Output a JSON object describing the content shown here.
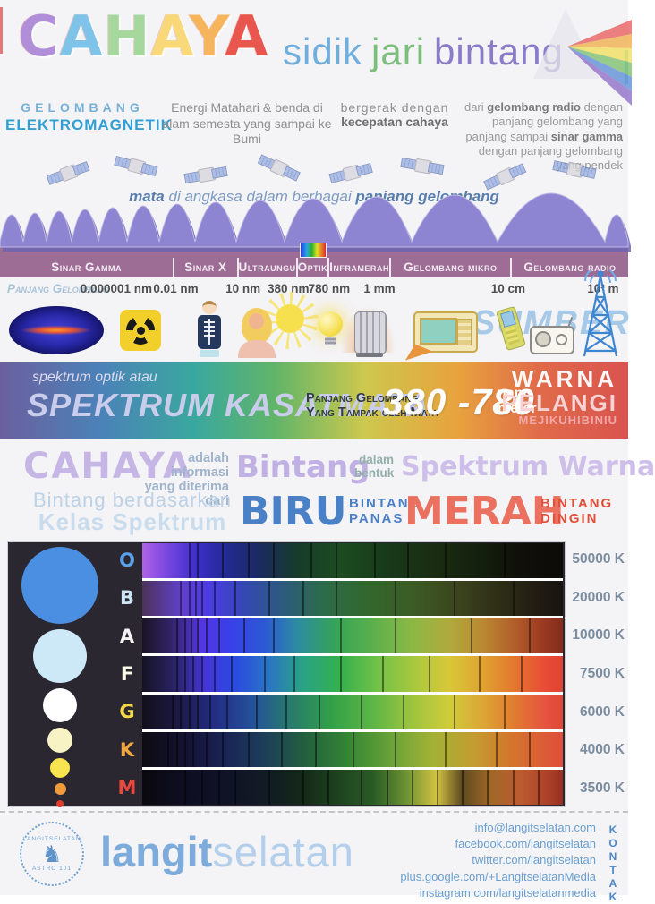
{
  "colors": {
    "background": "#f4f3f5",
    "accent_blue": "#2f9fd6",
    "band_bar": "#9d6d95",
    "wave_purple": "#8d85d1",
    "panel_dark": "#2a2730"
  },
  "header": {
    "title_letters": [
      {
        "char": "C",
        "color": "#b08fd8"
      },
      {
        "char": "A",
        "color": "#7fc4e8"
      },
      {
        "char": "H",
        "color": "#a6d89e"
      },
      {
        "char": "A",
        "color": "#f8d878"
      },
      {
        "char": "Y",
        "color": "#f6b45c"
      },
      {
        "char": "A",
        "color": "#e8564e"
      }
    ],
    "subtitle_words": [
      {
        "text": "sidik",
        "color": "#70aede"
      },
      {
        "text": "jari",
        "color": "#7cbe7c"
      },
      {
        "text": "bintang",
        "color": "#8a7cc8"
      }
    ]
  },
  "intro": {
    "gelombang": "GELOMBANG",
    "elektromagnetik": "ELEKTROMAGNETIK",
    "energi": "Energi Matahari & benda di alam semesta yang sampai ke Bumi",
    "bergerak_line1": "bergerak dengan",
    "bergerak_line2": "kecepatan cahaya",
    "dari_segments": [
      {
        "t": "dari "
      },
      {
        "t": "gelombang radio",
        "b": true
      },
      {
        "t": " dengan panjang gelombang yang panjang sampai "
      },
      {
        "t": "sinar gamma",
        "b": true
      },
      {
        "t": " dengan panjang gelombang yang pendek"
      }
    ]
  },
  "satellites": {
    "caption_segments": [
      {
        "t": "mata",
        "b": true
      },
      {
        "t": " di angkasa dalam berbagai "
      },
      {
        "t": "panjang gelombang",
        "b": true
      }
    ]
  },
  "em_bar": {
    "bands": [
      {
        "label": "Sinar Gamma",
        "width": 28.5
      },
      {
        "label": "Sinar X",
        "width": 10.4
      },
      {
        "label": "Ultraungu",
        "width": 8.1
      },
      {
        "label": "Optik",
        "width": 5.0,
        "rainbow": true
      },
      {
        "label": "Inframerah",
        "width": 9.3
      },
      {
        "label": "Gelombang mikro",
        "width": 19.7
      },
      {
        "label": "Gelombang radio",
        "width": 19.0
      }
    ],
    "wavelength_label": "Panjang Gelombang",
    "ticks": [
      {
        "label": "0.000001 nm",
        "pos": 18.5
      },
      {
        "label": "0.01 nm",
        "pos": 28.0
      },
      {
        "label": "10 nm",
        "pos": 38.7
      },
      {
        "label": "380 nm",
        "pos": 45.9
      },
      {
        "label": "780 nm",
        "pos": 52.4
      },
      {
        "label": "1 mm",
        "pos": 60.4
      },
      {
        "label": "10 cm",
        "pos": 80.9
      },
      {
        "label": "10³ m",
        "pos": 96.0
      }
    ],
    "sumber": "SUMBER",
    "source_icons": [
      "gamma-sky-map",
      "radioactive-symbol",
      "xray-skeleton-boy",
      "sunbathing-woman",
      "light-bulb",
      "radiator-heater",
      "microwave-oven",
      "mobile-phone",
      "radio-receiver",
      "radio-tower"
    ]
  },
  "banner": {
    "line1": "spektrum optik atau",
    "line2": "SPEKTRUM KASATMATA",
    "desc_line1": "Panjang Gelombang",
    "desc_line2": "Yang Tampak oleh Mata",
    "range": "380 -780",
    "unit_line1": "nano",
    "unit_line2": "meter",
    "warna": "WARNA",
    "pelangi": "PELANGI",
    "mejikuhibiniu": "MEJIKUHIBINIU"
  },
  "light": {
    "cahaya": "CAHAYA",
    "adalah_line1": "adalah informasi",
    "adalah_line2": "yang diterima dari",
    "bintang": "Bintang",
    "dalam_line1": "dalam",
    "dalam_line2": "bentuk",
    "spektrum_warna": "Spektrum Warna",
    "berdasarkan_line1": "Bintang berdasarkan",
    "berdasarkan_line2": "Kelas Spektrum",
    "biru": "BIRU",
    "panas_line1": "BINTANG",
    "panas_line2": "PANAS",
    "merah": "MERAH",
    "dingin_line1": "BINTANG",
    "dingin_line2": "DINGIN"
  },
  "chart_data": {
    "type": "heatmap",
    "title": "Kelas Spektrum Bintang",
    "classes": [
      "O",
      "B",
      "A",
      "F",
      "G",
      "K",
      "M"
    ],
    "temperatures_K": [
      50000,
      20000,
      10000,
      7500,
      6000,
      4000,
      3500
    ],
    "temperature_labels": [
      "50000 K",
      "20000 K",
      "10000 K",
      "7500 K",
      "6000 K",
      "4000 K",
      "3500 K"
    ],
    "em_bands": [
      "Sinar Gamma",
      "Sinar X",
      "Ultraungu",
      "Optik",
      "Inframerah",
      "Gelombang mikro",
      "Gelombang radio"
    ],
    "em_boundaries": [
      "0.000001 nm",
      "0.01 nm",
      "10 nm",
      "380 nm",
      "780 nm",
      "1 mm",
      "10 cm",
      "10³ m"
    ],
    "visible_range_nm": [
      380,
      780
    ],
    "legend_position": "right",
    "grid": false
  },
  "spectral_rows": [
    {
      "letter_color": "#5aa0ea",
      "circle": {
        "color": "#4a8fe2",
        "size": 86
      },
      "gradient": "linear-gradient(90deg,#b062e8 0%,#7846e0 6%,#3c2ec8 13%,#222a92 20%,#1b2a5e 28%,#173c2a 37%,#1c4c20 47%,#183a1a 58%,#1a2c12 70%,#14200e 80%,#100f0a 90%,#0c0b08 100%)",
      "lines": [
        11,
        13,
        19,
        25,
        31,
        40,
        46,
        55,
        63,
        72,
        86
      ]
    },
    {
      "letter_color": "#cfe6f6",
      "circle": {
        "color": "#cde9f7",
        "size": 60
      },
      "gradient": "linear-gradient(90deg,#4c3358 0%,#6040c8 9%,#4c3ce4 16%,#3648b4 24%,#2c5a80 33%,#2c6c4a 43%,#32682e 53%,#3c5c26 64%,#3c441e 75%,#2c2c16 86%,#201a12 95%,#181410 100%)",
      "lines": [
        9,
        11,
        12.5,
        14,
        17,
        22,
        30,
        38,
        46,
        60,
        74,
        88
      ]
    },
    {
      "letter_color": "#f4f4f4",
      "circle": {
        "color": "#ffffff",
        "size": 38
      },
      "gradient": "linear-gradient(90deg,#1a1424 0%,#32246a 7%,#5436e0 14%,#3840e8 21%,#2c58d4 29%,#2c8ca0 37%,#36a456 46%,#5cb04c 55%,#8cb845 64%,#b0aa3c 73%,#ba8832 81%,#b05c2a 89%,#9c3a22 95%,#842c1c 100%)",
      "lines": [
        8,
        10,
        11.5,
        13,
        15,
        18,
        24,
        31,
        47,
        60,
        78,
        92
      ]
    },
    {
      "letter_color": "#fcf9e6",
      "circle": {
        "color": "#f8f3c4",
        "size": 28
      },
      "gradient": "linear-gradient(90deg,#161222 0%,#2a2468 8%,#4636d8 15%,#2a4ae0 22%,#2a74c4 30%,#2aa286 38%,#34b04c 47%,#72c248 56%,#aac83e 65%,#d8c838 73%,#e0a232 81%,#e4742e 89%,#e84a36 96%,#e04434 100%)",
      "lines": [
        8,
        10,
        12,
        14,
        17,
        21,
        29,
        36,
        47,
        57,
        68,
        80,
        90
      ]
    },
    {
      "letter_color": "#f3d94a",
      "circle": {
        "color": "#f7e44e",
        "size": 22
      },
      "gradient": "linear-gradient(90deg,#12101c 0%,#1c1840 8%,#242c84 17%,#24509a 26%,#287a6e 35%,#32a047 45%,#5eb646 55%,#9cc43e 64%,#d0cc3a 73%,#dca636 81%,#e07e30 88%,#e65240 96%,#de4836 100%)",
      "lines": [
        7,
        9,
        11,
        13,
        16,
        20,
        27,
        34,
        42,
        52,
        62,
        74,
        86
      ]
    },
    {
      "letter_color": "#f0a83e",
      "circle": {
        "color": "#ee9b3d",
        "size": 13
      },
      "gradient": "linear-gradient(90deg,#0e0c12 0%,#141232 10%,#1a2456 20%,#1c3e58 29%,#24603e 39%,#348634 49%,#68a238 59%,#a2b236 69%,#c49c30 79%,#d4742c 88%,#e04e3c 100%)",
      "lines": [
        6,
        8,
        10,
        12,
        15,
        19,
        25,
        33,
        41,
        50,
        60,
        72,
        84,
        92
      ]
    },
    {
      "letter_color": "#e8493c",
      "circle": {
        "color": "#e33b2b",
        "size": 8
      },
      "gradient": "linear-gradient(90deg,#0a090e 0%,#0e0e22 10%,#101226 20%,#121c24 30%,#142818 38%,#1e4420 47%,#2a5c26 55%,#6e9434 63%,#d4c242 70%,#5e4a20 76%,#a06828 83%,#bc5a30 90%,#aa3e28 97%,#962e20 100%)",
      "lines": [
        10,
        14,
        18,
        22,
        30,
        38,
        44,
        52,
        58,
        64,
        70,
        76,
        82,
        88,
        94
      ]
    }
  ],
  "footer": {
    "stamp_top": "LANGITSELATAN",
    "stamp_bottom": "ASTRO 101",
    "wordmark_bold": "langit",
    "wordmark_light": "selatan",
    "contacts": [
      "info@langitselatan.com",
      "facebook.com/langitselatan",
      "twitter.com/langitselatan",
      "plus.google.com/+LangitselatanMedia",
      "instagram.com/langitselatanmedia"
    ],
    "kontak": "KONTAK"
  }
}
